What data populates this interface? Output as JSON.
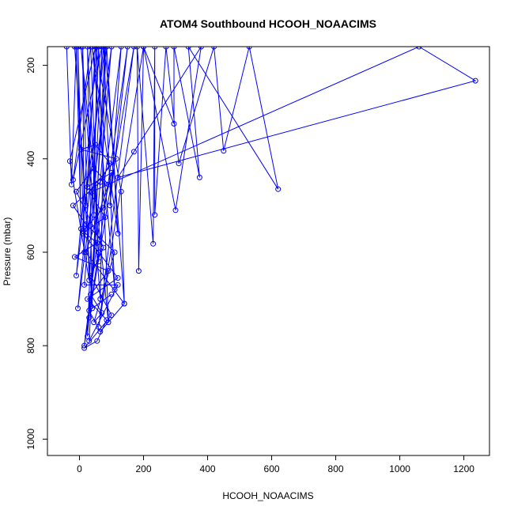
{
  "chart_data": {
    "type": "line",
    "title": "ATOM4 Southbound HCOOH_NOAACIMS",
    "xlabel": "HCOOH_NOAACIMS",
    "ylabel": "Pressure (mbar)",
    "xlim": [
      -100,
      1280
    ],
    "ylim": [
      1035,
      160
    ],
    "y_reversed": true,
    "grid": false,
    "xticks": [
      0,
      200,
      400,
      600,
      800,
      1000,
      1200
    ],
    "yticks": [
      200,
      400,
      600,
      800,
      1000
    ],
    "marker": "open-circle",
    "series": [
      {
        "color": "#0000ff",
        "points": [
          [
            -40,
            160
          ],
          [
            -25,
            455
          ],
          [
            -10,
            160
          ],
          [
            5,
            550
          ],
          [
            -5,
            160
          ],
          [
            15,
            600
          ],
          [
            10,
            160
          ],
          [
            30,
            660
          ],
          [
            -30,
            405
          ],
          [
            50,
            160
          ],
          [
            20,
            500
          ],
          [
            -15,
            160
          ],
          [
            40,
            720
          ],
          [
            25,
            160
          ],
          [
            60,
            620
          ],
          [
            35,
            160
          ],
          [
            -20,
            445
          ],
          [
            70,
            160
          ],
          [
            45,
            520
          ],
          [
            55,
            160
          ],
          [
            -10,
            650
          ],
          [
            80,
            160
          ],
          [
            65,
            700
          ],
          [
            5,
            160
          ],
          [
            90,
            750
          ],
          [
            60,
            160
          ],
          [
            25,
            780
          ],
          [
            100,
            160
          ],
          [
            -5,
            720
          ],
          [
            75,
            160
          ],
          [
            110,
            680
          ],
          [
            40,
            160
          ],
          [
            120,
            560
          ],
          [
            85,
            160
          ],
          [
            30,
            740
          ],
          [
            150,
            160
          ],
          [
            95,
            500
          ],
          [
            130,
            160
          ],
          [
            15,
            800
          ],
          [
            170,
            160
          ],
          [
            60,
            760
          ],
          [
            200,
            160
          ],
          [
            295,
            325
          ],
          [
            295,
            160
          ],
          [
            375,
            440
          ],
          [
            340,
            160
          ],
          [
            620,
            465
          ],
          [
            530,
            160
          ],
          [
            450,
            383
          ],
          [
            420,
            160
          ],
          [
            310,
            410
          ],
          [
            270,
            160
          ],
          [
            235,
            520
          ],
          [
            235,
            160
          ],
          [
            230,
            582
          ],
          [
            180,
            160
          ],
          [
            185,
            640
          ],
          [
            200,
            160
          ],
          [
            300,
            510
          ],
          [
            380,
            160
          ],
          [
            170,
            385
          ],
          [
            120,
            440
          ],
          [
            1236,
            233
          ],
          [
            1060,
            160
          ],
          [
            40,
            470
          ],
          [
            15,
            670
          ],
          [
            120,
            670
          ],
          [
            30,
            790
          ],
          [
            80,
            160
          ],
          [
            140,
            710
          ],
          [
            130,
            470
          ],
          [
            50,
            160
          ],
          [
            25,
            460
          ],
          [
            100,
            430
          ],
          [
            75,
            505
          ],
          [
            10,
            555
          ],
          [
            55,
            580
          ],
          [
            -15,
            610
          ],
          [
            90,
            640
          ],
          [
            35,
            690
          ],
          [
            70,
            730
          ],
          [
            45,
            750
          ],
          [
            110,
            600
          ],
          [
            20,
            540
          ],
          [
            -20,
            500
          ],
          [
            65,
            450
          ],
          [
            95,
            410
          ],
          [
            50,
            370
          ],
          [
            5,
            380
          ],
          [
            115,
            400
          ],
          [
            30,
            470
          ],
          [
            80,
            525
          ],
          [
            10,
            560
          ],
          [
            60,
            600
          ],
          [
            120,
            655
          ],
          [
            25,
            700
          ],
          [
            85,
            745
          ],
          [
            55,
            790
          ],
          [
            15,
            805
          ],
          [
            100,
            735
          ],
          [
            35,
            650
          ],
          [
            75,
            590
          ],
          [
            -10,
            470
          ],
          [
            45,
            420
          ],
          [
            90,
            455
          ],
          [
            20,
            600
          ],
          [
            140,
            710
          ],
          [
            65,
            770
          ],
          [
            30,
            725
          ],
          [
            100,
            690
          ]
        ]
      }
    ]
  }
}
